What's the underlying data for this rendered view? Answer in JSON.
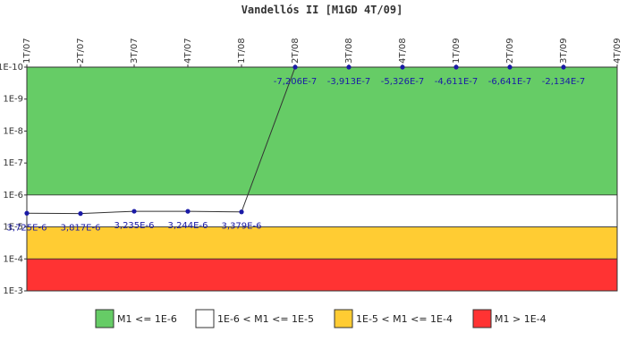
{
  "chart_data": {
    "type": "line",
    "title": "Vandellós II [M1GD 4T/09]",
    "xlabel": "",
    "ylabel": "",
    "y_scale": "log",
    "y_axis_inverted": true,
    "ylim": [
      1e-10,
      0.001
    ],
    "y_tick_labels": [
      "1E-10",
      "1E-9",
      "1E-8",
      "1E-7",
      "1E-6",
      "1E-5",
      "1E-4",
      "1E-3"
    ],
    "categories": [
      "1T/07",
      "2T/07",
      "3T/07",
      "4T/07",
      "1T/08",
      "2T/08",
      "3T/08",
      "4T/08",
      "1T/09",
      "2T/09",
      "3T/09",
      "4T/09"
    ],
    "series": [
      {
        "values": [
          3.725e-06,
          3.817e-06,
          3.235e-06,
          3.244e-06,
          3.379e-06,
          -7.206e-07,
          -3.913e-07,
          -5.326e-07,
          -4.611e-07,
          -6.641e-07,
          -2.134e-07,
          null
        ],
        "labels": [
          "3,725E-6",
          "3,817E-6",
          "3,235E-6",
          "3,244E-6",
          "3,379E-6",
          "-7,206E-7",
          "-3,913E-7",
          "-5,326E-7",
          "-4,611E-7",
          "-6,641E-7",
          "-2,134E-7",
          ""
        ],
        "color": "#1a1aa6"
      }
    ],
    "bands": [
      {
        "label": "M1 <= 1E-6",
        "from": 1e-10,
        "to": 1e-06,
        "color": "#66cc66"
      },
      {
        "label": "1E-6 < M1 <= 1E-5",
        "from": 1e-06,
        "to": 1e-05,
        "color": "#ffffff"
      },
      {
        "label": "1E-5 < M1 <= 1E-4",
        "from": 1e-05,
        "to": 0.0001,
        "color": "#ffcc33"
      },
      {
        "label": "M1 > 1E-4",
        "from": 0.0001,
        "to": 0.001,
        "color": "#ff3333"
      }
    ],
    "grid": false,
    "legend_position": "bottom"
  }
}
